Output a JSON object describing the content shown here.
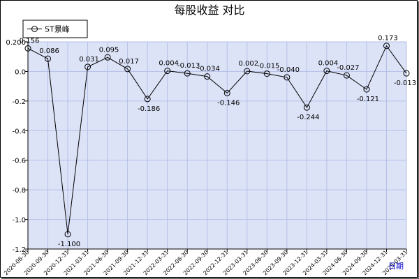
{
  "chart_data": {
    "type": "line",
    "title": "每股收益  对比",
    "xlabel": "日期",
    "ylabel": "",
    "ylim": [
      -1.2,
      0.2
    ],
    "yticks": [
      0.2,
      0.0,
      -0.2,
      -0.4,
      -0.6,
      -0.8,
      -1.0,
      -1.2
    ],
    "ytick_labels": [
      "0.200",
      "0.0",
      "-0.2",
      "-0.4",
      "-0.6",
      "-0.8",
      "-1.0",
      "-1.2"
    ],
    "grid": true,
    "legend_position": "top-left",
    "categories": [
      "2020-06-30",
      "2020-09-30",
      "2020-12-31",
      "2021-03-31",
      "2021-06-30",
      "2021-09-30",
      "2021-12-31",
      "2022-03-31",
      "2022-06-30",
      "2022-09-30",
      "2022-12-31",
      "2023-03-31",
      "2023-06-30",
      "2023-09-30",
      "2023-12-31",
      "2024-03-31",
      "2024-06-30",
      "2024-09-30",
      "2024-12-31",
      "2025-03-31"
    ],
    "series": [
      {
        "name": "ST景峰",
        "values": [
          0.156,
          0.086,
          -1.1,
          0.031,
          0.095,
          0.017,
          -0.186,
          0.004,
          -0.013,
          -0.034,
          -0.146,
          0.002,
          -0.015,
          -0.04,
          -0.244,
          0.004,
          -0.027,
          -0.121,
          0.173,
          -0.013
        ],
        "labels": [
          "0.156",
          "0.086",
          "-1.100",
          "0.031",
          "0.095",
          "0.017",
          "-0.186",
          "0.004",
          "-0.013",
          "-0.034",
          "-0.146",
          "0.002",
          "-0.015",
          "-0.040",
          "-0.244",
          "0.004",
          "-0.027",
          "-0.121",
          "0.173",
          "-0.013"
        ]
      }
    ],
    "colors": {
      "plot_background": "#dde3f7",
      "grid": "#b4bfe6",
      "line": "#000000",
      "axis_unit": "#0000cc"
    }
  }
}
